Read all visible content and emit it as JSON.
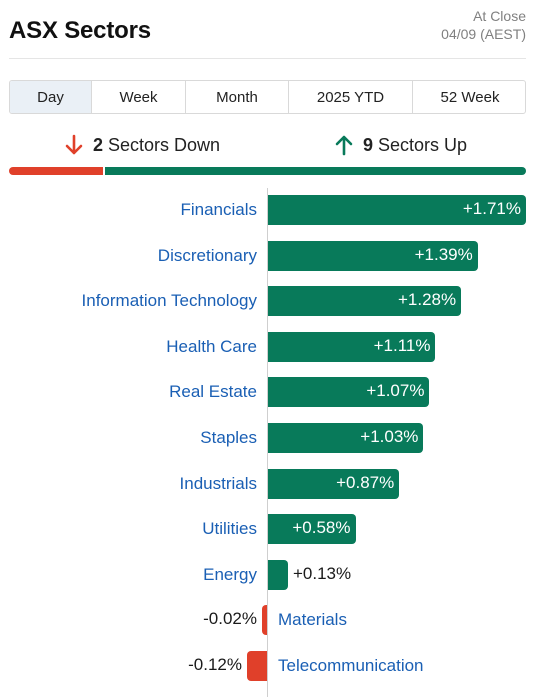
{
  "header": {
    "title": "ASX Sectors",
    "status_line1": "At Close",
    "status_line2": "04/09 (AEST)"
  },
  "tabs": [
    {
      "label": "Day",
      "active": true
    },
    {
      "label": "Week",
      "active": false
    },
    {
      "label": "Month",
      "active": false
    },
    {
      "label": "2025 YTD",
      "active": false
    },
    {
      "label": "52 Week",
      "active": false
    }
  ],
  "summary": {
    "down_count": "2",
    "down_label": "Sectors Down",
    "up_count": "9",
    "up_label": "Sectors Up"
  },
  "colors": {
    "up": "#087a5a",
    "down": "#e0402a",
    "link": "#1a5fb4"
  },
  "chart_data": {
    "type": "bar",
    "orientation": "horizontal",
    "categories": [
      "Financials",
      "Discretionary",
      "Information Technology",
      "Health Care",
      "Real Estate",
      "Staples",
      "Industrials",
      "Utilities",
      "Energy",
      "Materials",
      "Telecommunication"
    ],
    "values": [
      1.71,
      1.39,
      1.28,
      1.11,
      1.07,
      1.03,
      0.87,
      0.58,
      0.13,
      -0.02,
      -0.12
    ],
    "labels": [
      "+1.71%",
      "+1.39%",
      "+1.28%",
      "+1.11%",
      "+1.07%",
      "+1.03%",
      "+0.87%",
      "+0.58%",
      "+0.13%",
      "-0.02%",
      "-0.12%"
    ],
    "unit": "%"
  }
}
